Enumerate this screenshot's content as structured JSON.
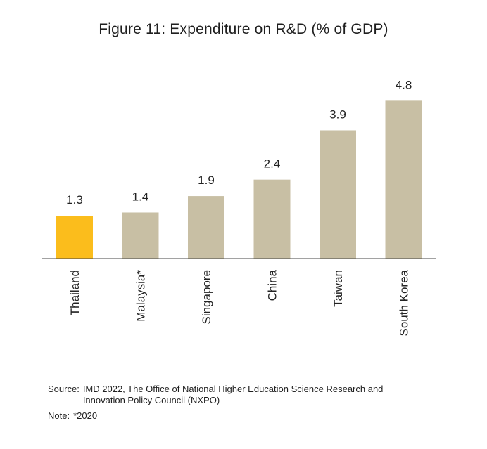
{
  "chart_data": {
    "type": "bar",
    "title": "Figure 11: Expenditure on R&D (% of GDP)",
    "xlabel": "",
    "ylabel": "",
    "categories": [
      "Thailand",
      "Malaysia*",
      "Singapore",
      "China",
      "Taiwan",
      "South Korea"
    ],
    "values": [
      1.3,
      1.4,
      1.9,
      2.4,
      3.9,
      4.8
    ],
    "value_labels": [
      "1.3",
      "1.4",
      "1.9",
      "2.4",
      "3.9",
      "4.8"
    ],
    "highlight_index": 0,
    "grid": false,
    "legend": "none",
    "tick_label_rotation": -90
  },
  "colors": {
    "bar": "#c8bfa4",
    "highlight": "#fbbd1c",
    "axis": "#444444",
    "text": "#222222"
  },
  "footer": {
    "source_label": "Source:",
    "source_text": "IMD 2022, The Office of National Higher Education Science Research and Innovation Policy Council (NXPO)",
    "note_label": "Note:",
    "note_text": "*2020"
  }
}
